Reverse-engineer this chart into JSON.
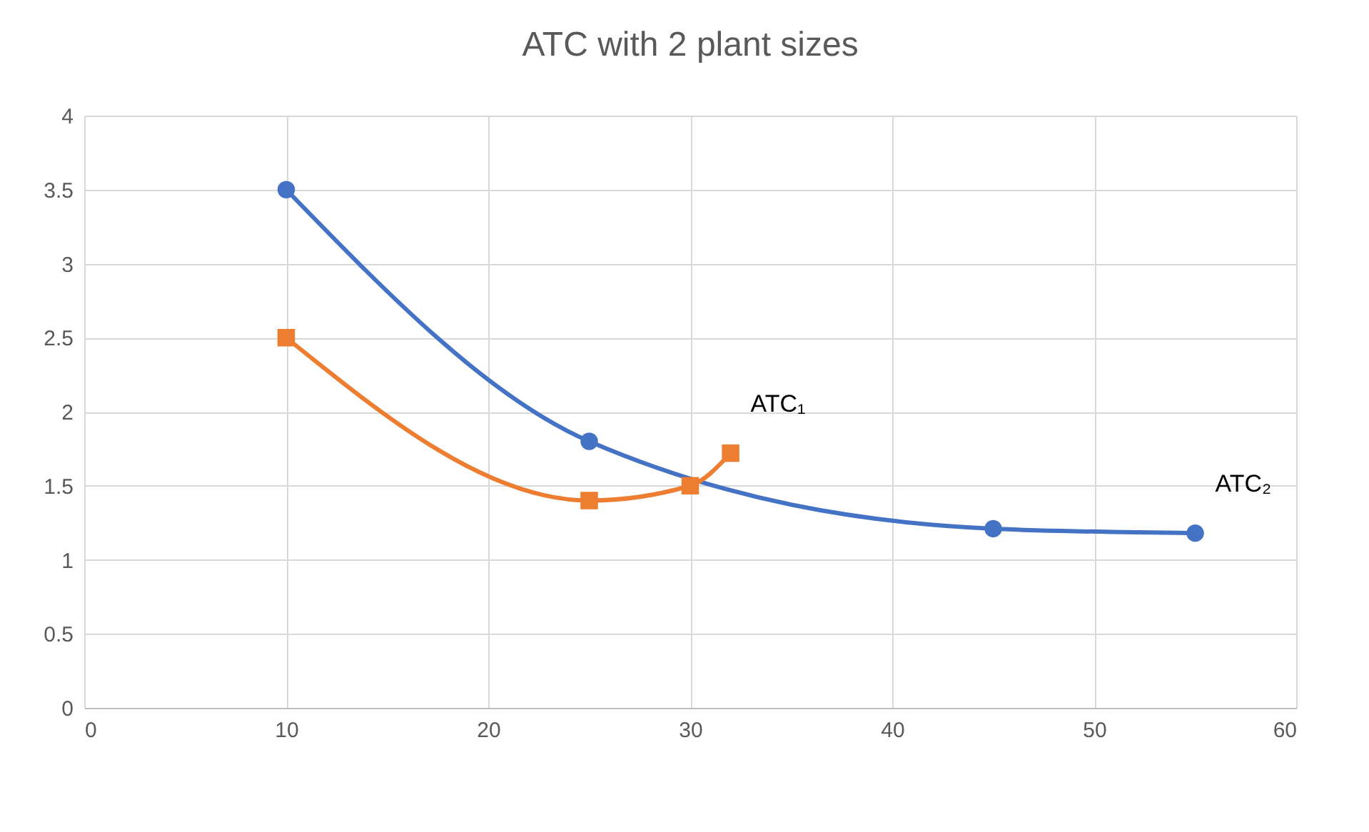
{
  "chart_data": {
    "type": "line",
    "title": "ATC with 2 plant sizes",
    "xlim": [
      0,
      60
    ],
    "xticks": [
      0,
      10,
      20,
      30,
      40,
      50,
      60
    ],
    "ylim": [
      0,
      4
    ],
    "yticks": [
      0,
      0.5,
      1,
      1.5,
      2,
      2.5,
      3,
      3.5,
      4
    ],
    "grid": true,
    "series": [
      {
        "name": "ATC₂",
        "color": "#4472c4",
        "marker": "circle",
        "x": [
          10,
          25,
          45,
          55
        ],
        "values": [
          3.5,
          1.8,
          1.21,
          1.18
        ]
      },
      {
        "name": "ATC₁",
        "color": "#ed7d31",
        "marker": "square",
        "x": [
          10,
          25,
          30,
          32
        ],
        "values": [
          2.5,
          1.4,
          1.5,
          1.72
        ]
      }
    ]
  }
}
